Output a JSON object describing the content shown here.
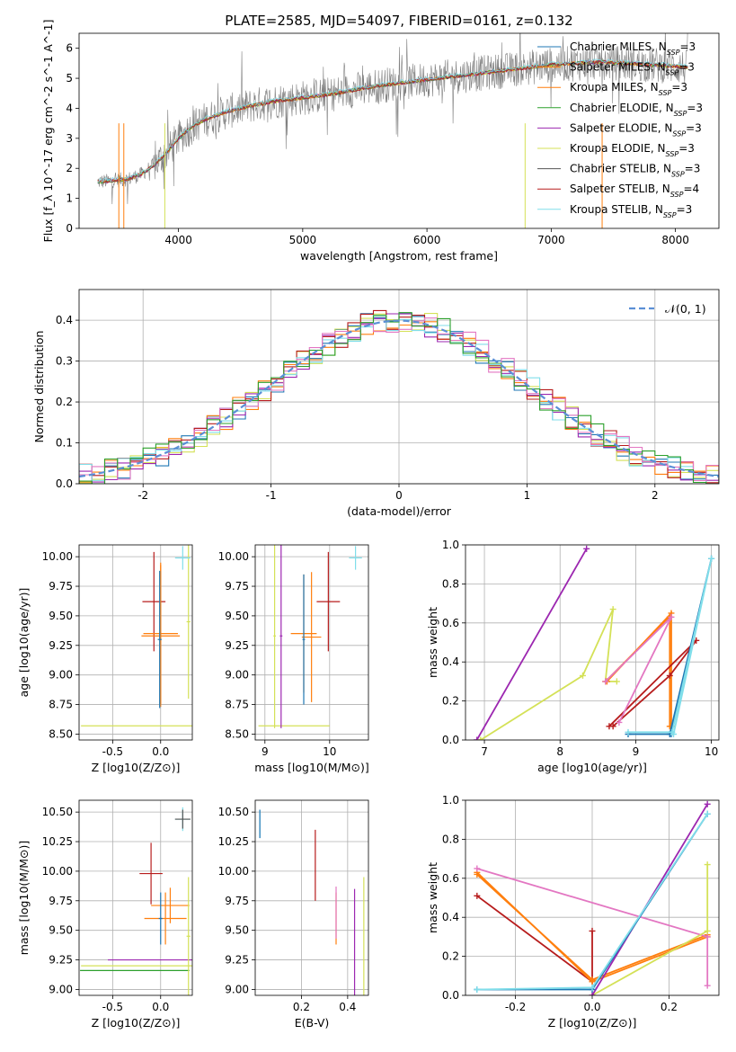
{
  "figure": {
    "title": "PLATE=2585, MJD=54097, FIBERID=0161, z=0.132"
  },
  "colors": {
    "Chabrier MILES": "#1f77b4",
    "Salpeter MILES": "#ff7f0e",
    "Kroupa MILES": "#ff7f0e",
    "Chabrier ELODIE": "#2ca02c",
    "Salpeter ELODIE": "#9c27b0",
    "Kroupa ELODIE": "#d4e157",
    "Chabrier STELIB": "#555555",
    "Salpeter STELIB": "#b71c1c",
    "Kroupa STELIB": "#80deea",
    "data": "#808080",
    "normal": "#5b8fd6",
    "pink": "#e377c2"
  },
  "chart_data": [
    {
      "id": "spectrum",
      "type": "line",
      "xlabel": "wavelength [Angstrom, rest frame]",
      "ylabel": "Flux [f_λ 10^-17 erg cm^-2 s^-1 A^-1]",
      "xlim": [
        3200,
        8350
      ],
      "ylim": [
        0,
        6.5
      ],
      "xticks": [
        4000,
        5000,
        6000,
        7000,
        8000
      ],
      "yticks": [
        0,
        1,
        2,
        3,
        4,
        5,
        6
      ],
      "grid": false,
      "legend_position": "top-right",
      "legend": [
        {
          "model": "Chabrier MILES",
          "nssp": "3"
        },
        {
          "model": "Salpeter MILES",
          "nssp": "3"
        },
        {
          "model": "Kroupa MILES",
          "nssp": "3"
        },
        {
          "model": "Chabrier ELODIE",
          "nssp": "3"
        },
        {
          "model": "Salpeter ELODIE",
          "nssp": "3"
        },
        {
          "model": "Kroupa ELODIE",
          "nssp": "3"
        },
        {
          "model": "Chabrier STELIB",
          "nssp": "3"
        },
        {
          "model": "Salpeter STELIB",
          "nssp": "4"
        },
        {
          "model": "Kroupa STELIB",
          "nssp": "3"
        }
      ],
      "continuum": {
        "x": [
          3350,
          3500,
          3600,
          3700,
          3800,
          3900,
          4000,
          4100,
          4200,
          4400,
          4600,
          4800,
          5000,
          5200,
          5400,
          5600,
          5800,
          6000,
          6200,
          6400,
          6600,
          6800,
          7000,
          7200,
          7400,
          7600,
          7800,
          8000,
          8100
        ],
        "y": [
          1.55,
          1.6,
          1.65,
          1.8,
          2.1,
          2.5,
          3.0,
          3.35,
          3.6,
          3.9,
          4.1,
          4.25,
          4.35,
          4.45,
          4.6,
          4.75,
          4.85,
          4.95,
          5.05,
          5.15,
          5.25,
          5.35,
          5.45,
          5.5,
          5.55,
          5.5,
          5.45,
          5.4,
          5.35
        ]
      }
    },
    {
      "id": "residuals",
      "type": "line",
      "xlabel": "(data-model)/error",
      "ylabel": "Normed distribution",
      "xlim": [
        -2.5,
        2.5
      ],
      "ylim": [
        0,
        0.475
      ],
      "xticks": [
        -2,
        -1,
        0,
        1,
        2
      ],
      "yticks": [
        0.0,
        0.1,
        0.2,
        0.3,
        0.4
      ],
      "grid": true,
      "legend_position": "top-right",
      "legend": [
        {
          "label": "𝒩(0, 1)"
        }
      ],
      "normal": {
        "mean": 0,
        "sigma": 1
      }
    },
    {
      "id": "age-vs-Z",
      "type": "scatter",
      "xlabel": "Z [log10(Z/Z⊙)]",
      "ylabel": "age  [log10(age/yr)]",
      "xlim": [
        -0.85,
        0.33
      ],
      "ylim": [
        8.45,
        10.1
      ],
      "xticks": [
        -0.5,
        0.0
      ],
      "yticks": [
        8.5,
        8.75,
        9.0,
        9.25,
        9.5,
        9.75,
        10.0
      ],
      "grid": true,
      "crosses": [
        {
          "model": "Salpeter STELIB",
          "x": -0.07,
          "xerr": 0.12,
          "y": 9.62,
          "yerr": 0.42
        },
        {
          "model": "Salpeter MILES",
          "x": 0.0,
          "xerr": 0.18,
          "y": 9.35,
          "yerr": 0.6
        },
        {
          "model": "Kroupa MILES",
          "x": 0.0,
          "xerr": 0.2,
          "y": 9.33,
          "yerr": 0.6
        },
        {
          "model": "Chabrier MILES",
          "x": -0.01,
          "xerr": 0.02,
          "y": 9.3,
          "yerr": 0.58
        },
        {
          "model": "Kroupa ELODIE",
          "x": -0.25,
          "xerr": 0.58,
          "y": 8.57,
          "yerr": 0.0
        },
        {
          "model": "Kroupa ELODIE",
          "x": 0.29,
          "xerr": 0.02,
          "y": 9.45,
          "yerr": 0.65
        },
        {
          "model": "Kroupa STELIB",
          "x": 0.23,
          "xerr": 0.08,
          "y": 9.99,
          "yerr": 0.1
        }
      ]
    },
    {
      "id": "age-vs-mass",
      "type": "scatter",
      "xlabel": "mass [log10(M/M⊙)]",
      "ylabel": "",
      "xlim": [
        8.85,
        10.6
      ],
      "ylim": [
        8.45,
        10.1
      ],
      "xticks": [
        9,
        10
      ],
      "yticks": [
        8.5,
        8.75,
        9.0,
        9.25,
        9.5,
        9.75,
        10.0
      ],
      "grid": true,
      "crosses": [
        {
          "model": "Salpeter STELIB",
          "x": 9.98,
          "xerr": 0.18,
          "y": 9.62,
          "yerr": 0.42
        },
        {
          "model": "Salpeter MILES",
          "x": 9.6,
          "xerr": 0.2,
          "y": 9.35,
          "yerr": 0.5
        },
        {
          "model": "Kroupa MILES",
          "x": 9.72,
          "xerr": 0.15,
          "y": 9.32,
          "yerr": 0.55
        },
        {
          "model": "Chabrier MILES",
          "x": 9.6,
          "xerr": 0.02,
          "y": 9.3,
          "yerr": 0.55
        },
        {
          "model": "Kroupa ELODIE",
          "x": 9.45,
          "xerr": 0.55,
          "y": 8.57,
          "yerr": 0.0
        },
        {
          "model": "Kroupa ELODIE",
          "x": 9.15,
          "xerr": 0.02,
          "y": 9.33,
          "yerr": 0.78
        },
        {
          "model": "Salpeter ELODIE",
          "x": 9.25,
          "xerr": 0.02,
          "y": 9.33,
          "yerr": 0.78
        },
        {
          "model": "Kroupa STELIB",
          "x": 10.4,
          "xerr": 0.1,
          "y": 9.99,
          "yerr": 0.1
        }
      ]
    },
    {
      "id": "massweight-vs-age",
      "type": "line",
      "xlabel": "age  [log10(age/yr)]",
      "ylabel": "mass weight",
      "xlim": [
        6.75,
        10.1
      ],
      "ylim": [
        0,
        1.0
      ],
      "xticks": [
        7,
        8,
        9,
        10
      ],
      "yticks": [
        0.0,
        0.2,
        0.4,
        0.6,
        0.8,
        1.0
      ],
      "grid": true,
      "series": [
        {
          "model": "Salpeter ELODIE",
          "x": [
            6.9,
            8.35
          ],
          "y": [
            0.0,
            0.98
          ]
        },
        {
          "model": "Kroupa ELODIE",
          "x": [
            6.95,
            8.3,
            8.7,
            8.6,
            8.75
          ],
          "y": [
            0.0,
            0.33,
            0.67,
            0.3,
            0.3
          ]
        },
        {
          "model": "Salpeter MILES",
          "x": [
            8.6,
            9.45,
            9.45,
            9.47
          ],
          "y": [
            0.3,
            0.63,
            0.07,
            0.07
          ]
        },
        {
          "model": "Kroupa MILES",
          "x": [
            8.62,
            9.47,
            9.47
          ],
          "y": [
            0.3,
            0.65,
            0.07
          ]
        },
        {
          "model": "Salpeter STELIB",
          "x": [
            8.7,
            9.45,
            9.8,
            8.65
          ],
          "y": [
            0.07,
            0.33,
            0.51,
            0.07
          ]
        },
        {
          "model": "pink",
          "x": [
            8.6,
            9.47,
            8.78
          ],
          "y": [
            0.3,
            0.63,
            0.09
          ]
        },
        {
          "model": "Chabrier MILES",
          "x": [
            8.9,
            9.45,
            10.0,
            9.47
          ],
          "y": [
            0.03,
            0.03,
            0.93,
            0.03
          ]
        },
        {
          "model": "Kroupa STELIB",
          "x": [
            8.9,
            9.48,
            10.0,
            9.5
          ],
          "y": [
            0.04,
            0.04,
            0.93,
            0.03
          ]
        }
      ]
    },
    {
      "id": "mass-vs-Z",
      "type": "scatter",
      "xlabel": "Z [log10(Z/Z⊙)]",
      "ylabel": "mass [log10(M/M⊙)]",
      "xlim": [
        -0.85,
        0.33
      ],
      "ylim": [
        8.95,
        10.6
      ],
      "xticks": [
        -0.5,
        0.0
      ],
      "yticks": [
        9.0,
        9.25,
        9.5,
        9.75,
        10.0,
        10.25,
        10.5
      ],
      "grid": true,
      "crosses": [
        {
          "model": "Salpeter STELIB",
          "x": -0.1,
          "xerr": 0.12,
          "y": 9.98,
          "yerr": 0.26
        },
        {
          "model": "Salpeter MILES",
          "x": 0.05,
          "xerr": 0.22,
          "y": 9.6,
          "yerr": 0.22
        },
        {
          "model": "Kroupa MILES",
          "x": 0.1,
          "xerr": 0.2,
          "y": 9.71,
          "yerr": 0.15
        },
        {
          "model": "Chabrier MILES",
          "x": 0.0,
          "xerr": 0.02,
          "y": 9.6,
          "yerr": 0.22
        },
        {
          "model": "Salpeter ELODIE",
          "x": -0.1,
          "xerr": 0.45,
          "y": 9.25,
          "yerr": 0.0
        },
        {
          "model": "Kroupa ELODIE",
          "x": -0.25,
          "xerr": 0.58,
          "y": 9.2,
          "yerr": 0.0
        },
        {
          "model": "Chabrier ELODIE",
          "x": -0.27,
          "xerr": 0.57,
          "y": 9.16,
          "yerr": 0.0
        },
        {
          "model": "Kroupa ELODIE",
          "x": 0.29,
          "xerr": 0.02,
          "y": 9.45,
          "yerr": 0.5
        },
        {
          "model": "Kroupa STELIB",
          "x": 0.23,
          "xerr": 0.08,
          "y": 10.44,
          "yerr": 0.1
        },
        {
          "model": "Chabrier STELIB",
          "x": 0.23,
          "xerr": 0.08,
          "y": 10.44,
          "yerr": 0.08
        }
      ]
    },
    {
      "id": "mass-vs-EBV",
      "type": "scatter",
      "xlabel": "E(B-V)",
      "ylabel": "",
      "xlim": [
        0.0,
        0.49
      ],
      "ylim": [
        8.95,
        10.6
      ],
      "xticks": [
        0.2,
        0.4
      ],
      "yticks": [
        9.0,
        9.25,
        9.5,
        9.75,
        10.0,
        10.25,
        10.5
      ],
      "grid": true,
      "crosses": [
        {
          "model": "Kroupa STELIB",
          "x": 0.02,
          "xerr": 0.0,
          "y": 10.4,
          "yerr": 0.12
        },
        {
          "model": "Chabrier MILES",
          "x": 0.02,
          "xerr": 0.0,
          "y": 10.4,
          "yerr": 0.12
        },
        {
          "model": "Salpeter STELIB",
          "x": 0.26,
          "xerr": 0.0,
          "y": 10.05,
          "yerr": 0.3
        },
        {
          "model": "Salpeter MILES",
          "x": 0.35,
          "xerr": 0.0,
          "y": 9.6,
          "yerr": 0.22
        },
        {
          "model": "pink",
          "x": 0.35,
          "xerr": 0.0,
          "y": 9.65,
          "yerr": 0.22
        },
        {
          "model": "Salpeter ELODIE",
          "x": 0.43,
          "xerr": 0.0,
          "y": 9.4,
          "yerr": 0.45
        },
        {
          "model": "Kroupa ELODIE",
          "x": 0.47,
          "xerr": 0.0,
          "y": 9.45,
          "yerr": 0.5
        }
      ]
    },
    {
      "id": "massweight-vs-Z",
      "type": "line",
      "xlabel": "Z [log10(Z/Z⊙)]",
      "ylabel": "mass weight",
      "xlim": [
        -0.33,
        0.33
      ],
      "ylim": [
        0,
        1.0
      ],
      "xticks": [
        -0.2,
        0.0,
        0.2
      ],
      "yticks": [
        0.0,
        0.2,
        0.4,
        0.6,
        0.8,
        1.0
      ],
      "grid": true,
      "series": [
        {
          "model": "Salpeter STELIB",
          "x": [
            -0.3,
            0.0,
            0.0
          ],
          "y": [
            0.51,
            0.07,
            0.33
          ]
        },
        {
          "model": "Salpeter MILES",
          "x": [
            -0.3,
            0.0,
            0.3
          ],
          "y": [
            0.63,
            0.07,
            0.3
          ]
        },
        {
          "model": "Kroupa MILES",
          "x": [
            -0.3,
            0.0,
            0.3
          ],
          "y": [
            0.62,
            0.08,
            0.31
          ]
        },
        {
          "model": "pink",
          "x": [
            -0.3,
            0.3,
            0.3
          ],
          "y": [
            0.65,
            0.3,
            0.05
          ]
        },
        {
          "model": "Kroupa ELODIE",
          "x": [
            0.0,
            0.3,
            0.3
          ],
          "y": [
            0.0,
            0.33,
            0.67
          ]
        },
        {
          "model": "Salpeter ELODIE",
          "x": [
            0.0,
            0.3
          ],
          "y": [
            0.0,
            0.98
          ]
        },
        {
          "model": "Chabrier MILES",
          "x": [
            -0.3,
            0.0,
            0.3
          ],
          "y": [
            0.03,
            0.03,
            0.93
          ]
        },
        {
          "model": "Kroupa STELIB",
          "x": [
            -0.3,
            0.0,
            0.3
          ],
          "y": [
            0.03,
            0.04,
            0.93
          ]
        }
      ]
    }
  ]
}
